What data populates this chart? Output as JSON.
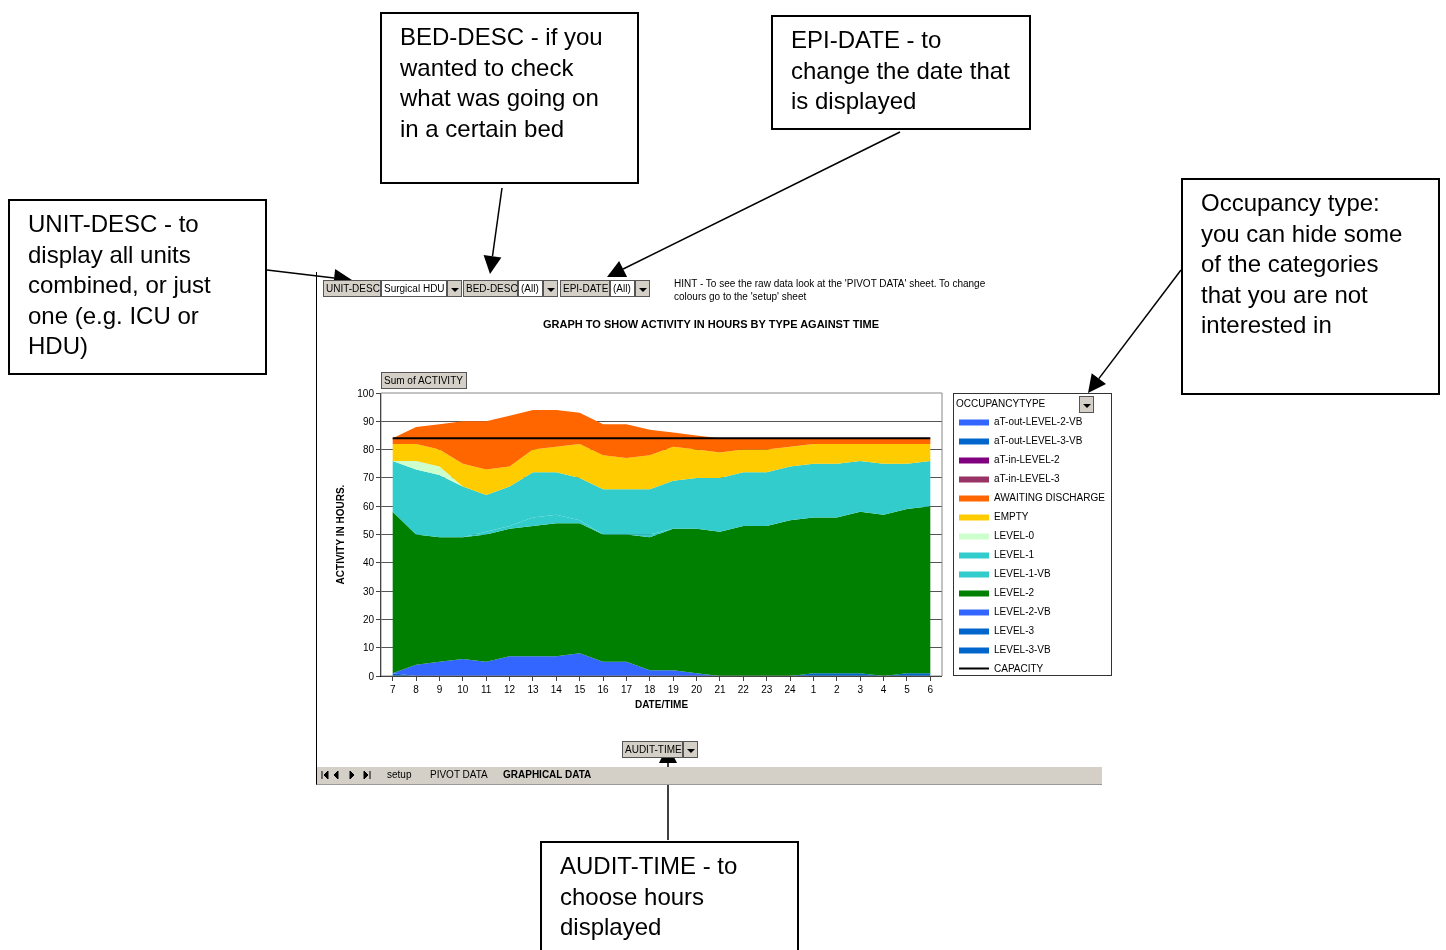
{
  "chart_data": {
    "type": "area",
    "stacked": true,
    "title": "GRAPH TO SHOW ACTIVITY IN HOURS BY TYPE AGAINST TIME",
    "xlabel": "DATE/TIME",
    "ylabel": "ACTIVITY IN HOURS.",
    "legend_title": "OCCUPANCYTYPE",
    "legend": "right",
    "grid": "y",
    "categories": [
      "7",
      "8",
      "9",
      "10",
      "11",
      "12",
      "13",
      "14",
      "15",
      "16",
      "17",
      "18",
      "19",
      "20",
      "21",
      "22",
      "23",
      "24",
      "1",
      "2",
      "3",
      "4",
      "5",
      "6"
    ],
    "ylim": [
      0,
      100
    ],
    "yticks": [
      0,
      10,
      20,
      30,
      40,
      50,
      60,
      70,
      80,
      90,
      100
    ],
    "series": [
      {
        "name": "CAPACITY",
        "type": "line",
        "color": "#000000",
        "values": [
          84,
          84,
          84,
          84,
          84,
          84,
          84,
          84,
          84,
          84,
          84,
          84,
          84,
          84,
          84,
          84,
          84,
          84,
          84,
          84,
          84,
          84,
          84,
          84
        ]
      },
      {
        "name": "LEVEL-3-VB",
        "color": "#0066cc",
        "values": [
          null,
          null,
          null,
          null,
          null,
          null,
          null,
          null,
          null,
          null,
          null,
          null,
          null,
          null,
          null,
          null,
          null,
          null,
          null,
          null,
          null,
          null,
          null,
          null
        ]
      },
      {
        "name": "LEVEL-3",
        "color": "#0066cc",
        "values": [
          1,
          0,
          0,
          0,
          0,
          0,
          0,
          0,
          0,
          0,
          0,
          0,
          0,
          0,
          0,
          0,
          0,
          0,
          1,
          1,
          1,
          0,
          1,
          1
        ]
      },
      {
        "name": "LEVEL-2-VB",
        "color": "#3366ff",
        "values": [
          0,
          4,
          5,
          6,
          5,
          7,
          7,
          7,
          8,
          5,
          5,
          2,
          2,
          1,
          0,
          0,
          0,
          0,
          0,
          0,
          0,
          0,
          0,
          0
        ]
      },
      {
        "name": "LEVEL-2",
        "color": "#008000",
        "values": [
          57,
          46,
          44,
          43,
          45,
          45,
          46,
          47,
          46,
          45,
          45,
          47,
          50,
          51,
          51,
          53,
          53,
          55,
          55,
          55,
          57,
          57,
          58,
          59
        ]
      },
      {
        "name": "LEVEL-1-VB",
        "color": "#33cccc",
        "values": [
          0,
          0,
          0,
          0,
          1,
          1,
          3,
          3,
          1,
          0,
          0,
          1,
          0,
          0,
          0,
          0,
          0,
          0,
          0,
          0,
          0,
          0,
          0,
          0
        ]
      },
      {
        "name": "LEVEL-1",
        "color": "#33cccc",
        "values": [
          18,
          23,
          22,
          18,
          13,
          14,
          16,
          15,
          15,
          16,
          16,
          16,
          17,
          18,
          19,
          19,
          19,
          19,
          19,
          19,
          18,
          18,
          16,
          16
        ]
      },
      {
        "name": "LEVEL-0",
        "color": "#ccffcc",
        "values": [
          0,
          3,
          3,
          0,
          0,
          0,
          0,
          0,
          0,
          0,
          0,
          0,
          0,
          0,
          0,
          0,
          0,
          0,
          0,
          0,
          0,
          0,
          0,
          0
        ]
      },
      {
        "name": "EMPTY",
        "color": "#ffcc00",
        "values": [
          6,
          6,
          6,
          8,
          9,
          7,
          8,
          9,
          12,
          12,
          11,
          12,
          12,
          10,
          9,
          8,
          8,
          7,
          7,
          7,
          6,
          7,
          7,
          6
        ]
      },
      {
        "name": "AWAITING DISCHARGE",
        "color": "#ff6600",
        "values": [
          2,
          6,
          9,
          15,
          17,
          18,
          14,
          13,
          11,
          11,
          12,
          9,
          5,
          5,
          5,
          4,
          4,
          3,
          2,
          2,
          2,
          2,
          2,
          2
        ]
      },
      {
        "name": "aT-in-LEVEL-3",
        "color": "#993366",
        "values": [
          null,
          null,
          null,
          null,
          null,
          null,
          null,
          null,
          null,
          null,
          null,
          null,
          null,
          null,
          null,
          null,
          null,
          null,
          null,
          null,
          null,
          null,
          null,
          null
        ]
      },
      {
        "name": "aT-in-LEVEL-2",
        "color": "#800080",
        "values": [
          null,
          null,
          null,
          null,
          null,
          null,
          null,
          null,
          null,
          null,
          null,
          null,
          null,
          null,
          null,
          null,
          null,
          null,
          null,
          null,
          null,
          null,
          null,
          null
        ]
      },
      {
        "name": "aT-out-LEVEL-3-VB",
        "color": "#0066cc",
        "values": [
          null,
          null,
          null,
          null,
          null,
          null,
          null,
          null,
          null,
          null,
          null,
          null,
          null,
          null,
          null,
          null,
          null,
          null,
          null,
          null,
          null,
          null,
          null,
          null
        ]
      },
      {
        "name": "aT-out-LEVEL-2-VB",
        "color": "#3366ff",
        "values": [
          null,
          null,
          null,
          null,
          null,
          null,
          null,
          null,
          null,
          null,
          null,
          null,
          null,
          null,
          null,
          null,
          null,
          null,
          null,
          null,
          null,
          null,
          null,
          null
        ]
      }
    ],
    "annotations": [
      "UNIT-DESC - to display all units combined, or just one (e.g. ICU or HDU)",
      "BED-DESC - if you wanted to check what was going on in a certain bed",
      "EPI-DATE - to change the date that is displayed",
      "Occupancy type: you can hide some of the categories that you are not interested in",
      "AUDIT-TIME - to choose hours displayed",
      "UNIT-DESC",
      "Surgical HDU",
      "BED-DESC",
      "(All)",
      "EPI-DATE",
      "(All)",
      "HINT  - To see the raw data look at the 'PIVOT DATA' sheet.  To change colours go to the 'setup' sheet",
      "Sum of ACTIVITY",
      "AUDIT-TIME",
      "setup",
      "PIVOT DATA",
      "GRAPHICAL DATA"
    ]
  }
}
